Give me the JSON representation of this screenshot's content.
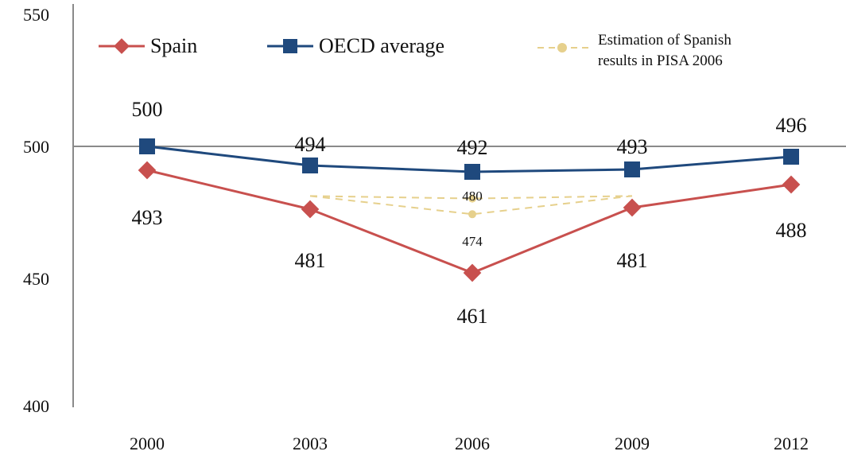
{
  "chart_data": {
    "type": "line",
    "categories": [
      "2000",
      "2003",
      "2006",
      "2009",
      "2012"
    ],
    "ylim": [
      400,
      550
    ],
    "yticks": [
      400,
      450,
      500,
      550
    ],
    "reference_line": 500,
    "series": [
      {
        "name": "Spain",
        "values": [
          493,
          481,
          461,
          481,
          488
        ],
        "labels": [
          "493",
          "481",
          "461",
          "481",
          "488"
        ],
        "color": "#c8504e",
        "marker": "diamond"
      },
      {
        "name": "OECD average",
        "values": [
          500,
          494,
          492,
          493,
          496
        ],
        "labels": [
          "500",
          "494",
          "492",
          "493",
          "496"
        ],
        "color": "#1f497d",
        "marker": "square"
      }
    ],
    "estimation": {
      "legend": [
        "Estimation of Spanish",
        "results in PISA 2006"
      ],
      "color": "#e6d08c",
      "line_style": "dashed",
      "points": [
        {
          "x": "2006",
          "value": 480,
          "label": "480"
        },
        {
          "x": "2006",
          "value": 474,
          "label": "474"
        }
      ],
      "connect_from": "2003",
      "connect_to": "2009"
    }
  }
}
